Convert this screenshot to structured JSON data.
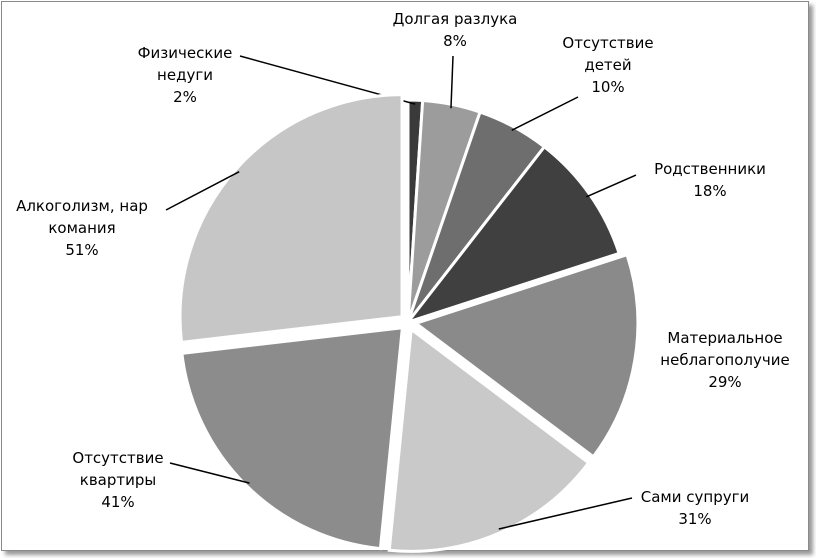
{
  "chart_data": {
    "type": "pie",
    "categories": [
      "Физические\nнедуги",
      "Долгая разлука",
      "Отсутствие\nдетей",
      "Родственники",
      "Материальное\nнеблагополучие",
      "Сами супруги",
      "Отсутствие\nквартиры",
      "Алкоголизм, нар\nкомания"
    ],
    "values": [
      2,
      8,
      10,
      18,
      29,
      31,
      41,
      51
    ],
    "value_labels": [
      "2%",
      "8%",
      "10%",
      "18%",
      "29%",
      "31%",
      "41%",
      "51%"
    ],
    "colors": [
      "#3a3a3a",
      "#9c9c9c",
      "#6e6e6e",
      "#404040",
      "#8a8a8a",
      "#c9c9c9",
      "#8c8c8c",
      "#c6c6c6"
    ],
    "exploded": [
      false,
      false,
      false,
      false,
      true,
      true,
      true,
      true
    ]
  }
}
